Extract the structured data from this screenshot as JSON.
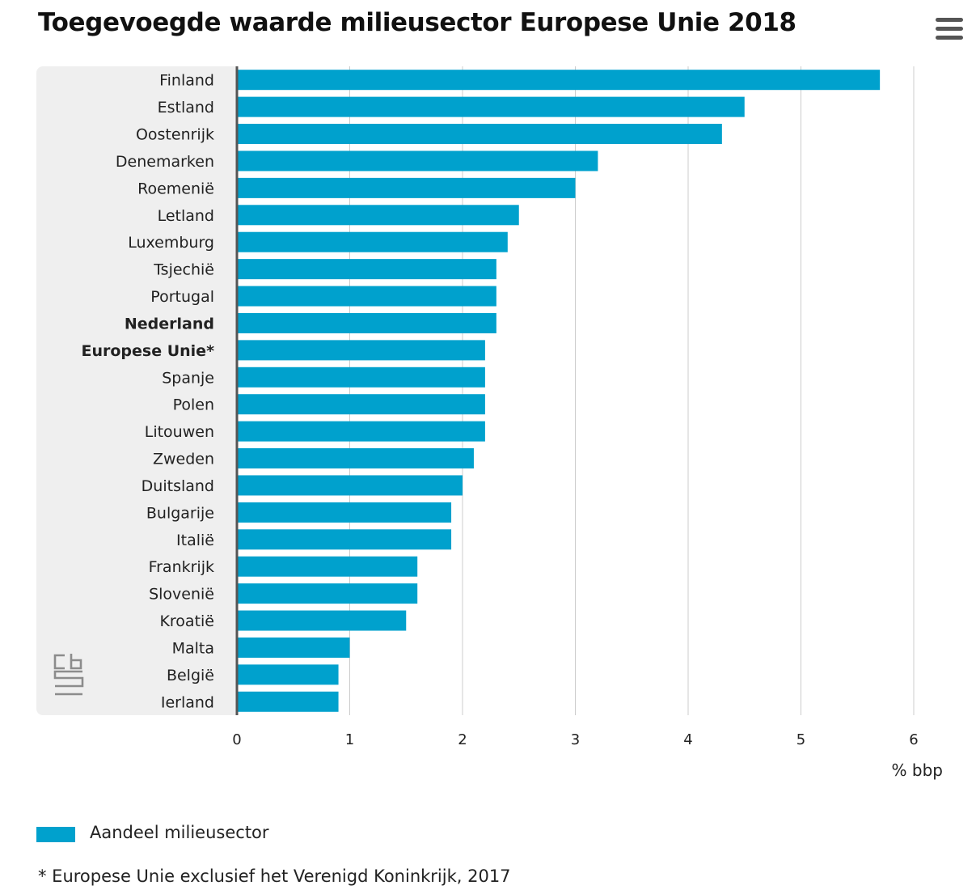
{
  "header": {
    "title": "Toegevoegde waarde milieusector Europese Unie 2018"
  },
  "menu": {
    "icon": "hamburger-menu-icon"
  },
  "logo": {
    "icon": "cbs-logo-icon",
    "text": "cbs"
  },
  "chart_data": {
    "type": "bar",
    "orientation": "horizontal",
    "title": "Toegevoegde waarde milieusector Europese Unie 2018",
    "xlabel": "% bbp",
    "ylabel": "",
    "xlim": [
      0,
      6
    ],
    "xticks": [
      0,
      1,
      2,
      3,
      4,
      5,
      6
    ],
    "grid": true,
    "categories": [
      "Finland",
      "Estland",
      "Oostenrijk",
      "Denemarken",
      "Roemenië",
      "Letland",
      "Luxemburg",
      "Tsjechië",
      "Portugal",
      "Nederland",
      "Europese Unie*",
      "Spanje",
      "Polen",
      "Litouwen",
      "Zweden",
      "Duitsland",
      "Bulgarije",
      "Italië",
      "Frankrijk",
      "Slovenië",
      "Kroatië",
      "Malta",
      "België",
      "Ierland"
    ],
    "bold_categories": [
      "Nederland",
      "Europese Unie*"
    ],
    "series": [
      {
        "name": "Aandeel milieusector",
        "color": "#00a1cd",
        "values": [
          5.7,
          4.5,
          4.3,
          3.2,
          3.0,
          2.5,
          2.4,
          2.3,
          2.3,
          2.3,
          2.2,
          2.2,
          2.2,
          2.2,
          2.1,
          2.0,
          1.9,
          1.9,
          1.6,
          1.6,
          1.5,
          1.0,
          0.9,
          0.9
        ]
      }
    ]
  },
  "legend": {
    "label": "Aandeel milieusector",
    "color": "#00a1cd"
  },
  "footnote": "* Europese Unie exclusief het Verenigd Koninkrijk, 2017"
}
